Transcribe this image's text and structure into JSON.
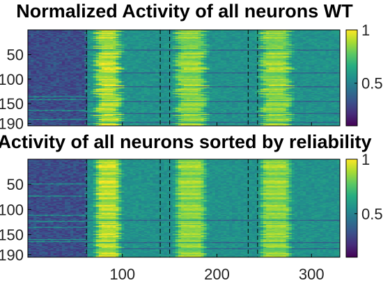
{
  "colors": {
    "viridis": [
      "#440154",
      "#472c7a",
      "#3b518b",
      "#2c718e",
      "#21908d",
      "#27ad81",
      "#5cc863",
      "#aadc32",
      "#fde725"
    ],
    "event_line": "#000000",
    "axes": "#000000"
  },
  "chart_data": [
    {
      "type": "heatmap",
      "title": "Normalized Activity of all neurons WT",
      "xlim": [
        0,
        330
      ],
      "ylim": [
        0,
        195
      ],
      "y_direction": "reverse",
      "xticks": [
        100,
        200,
        300
      ],
      "xtick_labels": [
        "",
        "",
        ""
      ],
      "yticks": [
        50,
        100,
        150,
        190
      ],
      "ytick_labels": [
        "50",
        "100",
        "150",
        "190"
      ],
      "colorbar": {
        "range": [
          0.1,
          1
        ],
        "ticks": [
          0.5,
          1
        ],
        "tick_labels": [
          "0.5",
          "1"
        ]
      },
      "event_lines": [
        62,
        140,
        150,
        233,
        243
      ],
      "activity_profile": {
        "baseline_end": 62,
        "bumps": [
          {
            "start": 70,
            "end": 100,
            "level": 0.98
          },
          {
            "start": 155,
            "end": 190,
            "level": 0.9
          },
          {
            "start": 245,
            "end": 280,
            "level": 0.9
          }
        ]
      }
    },
    {
      "type": "heatmap",
      "title": "Activity of all neurons sorted by reliability",
      "xlim": [
        0,
        330
      ],
      "ylim": [
        0,
        195
      ],
      "y_direction": "reverse",
      "xticks": [
        100,
        200,
        300
      ],
      "xtick_labels": [
        "100",
        "200",
        "300"
      ],
      "yticks": [
        50,
        100,
        150,
        190
      ],
      "ytick_labels": [
        "50",
        "100",
        "150",
        "190"
      ],
      "colorbar": {
        "range": [
          0.1,
          1
        ],
        "ticks": [
          0.5,
          1
        ],
        "tick_labels": [
          "0.5",
          "1"
        ]
      },
      "event_lines": [
        62,
        140,
        150,
        233,
        243
      ],
      "activity_profile": {
        "baseline_end": 62,
        "bumps": [
          {
            "start": 70,
            "end": 100,
            "level": 0.98
          },
          {
            "start": 155,
            "end": 190,
            "level": 0.9
          },
          {
            "start": 245,
            "end": 280,
            "level": 0.9
          }
        ]
      }
    }
  ]
}
